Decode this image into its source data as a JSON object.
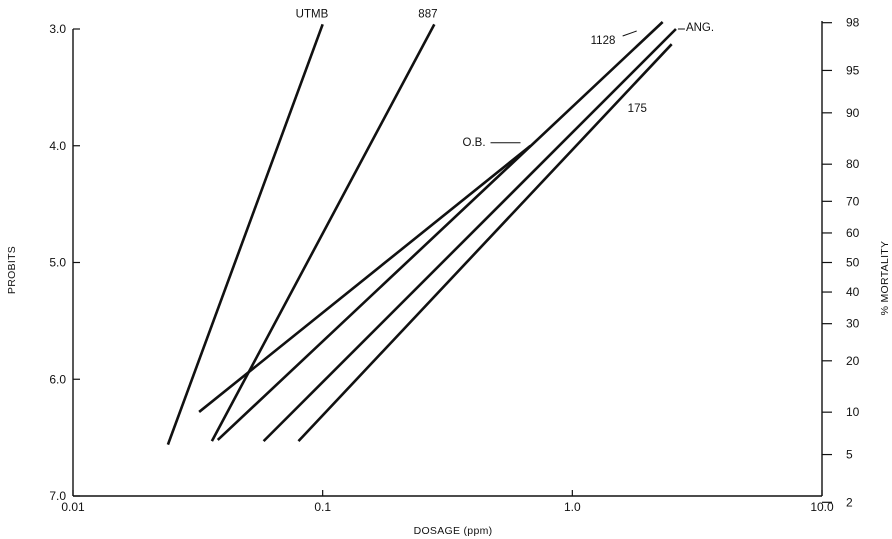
{
  "chart_data": {
    "type": "line",
    "title": "",
    "xlabel": "DOSAGE (ppm)",
    "ylabel": "PROBITS",
    "y2label": "% MORTALITY",
    "xscale": "log",
    "xlim": [
      0.01,
      10.0
    ],
    "ylim": [
      3.0,
      7.0
    ],
    "y_inverted": true,
    "grid": false,
    "legend": "none",
    "x_ticks": [
      0.01,
      0.1,
      1.0,
      10.0
    ],
    "x_tick_labels": [
      "0.01",
      "0.1",
      "1.0",
      "10.0"
    ],
    "y_ticks": [
      3.0,
      4.0,
      5.0,
      6.0,
      7.0
    ],
    "y_tick_labels": [
      "3.0",
      "4.0",
      "5.0",
      "6.0",
      "7.0"
    ],
    "y2_ticks": [
      {
        "probit": 2.946,
        "label": "98"
      },
      {
        "probit": 3.355,
        "label": "95"
      },
      {
        "probit": 3.718,
        "label": "90"
      },
      {
        "probit": 4.158,
        "label": "80"
      },
      {
        "probit": 4.476,
        "label": "70"
      },
      {
        "probit": 4.747,
        "label": "60"
      },
      {
        "probit": 5.0,
        "label": "50"
      },
      {
        "probit": 5.253,
        "label": "40"
      },
      {
        "probit": 5.524,
        "label": "30"
      },
      {
        "probit": 5.842,
        "label": "20"
      },
      {
        "probit": 6.282,
        "label": "10"
      },
      {
        "probit": 6.645,
        "label": "5"
      },
      {
        "probit": 7.054,
        "label": "2"
      }
    ],
    "series": [
      {
        "name": "UTMB",
        "points": [
          {
            "x": 0.024,
            "y": 6.56
          },
          {
            "x": 0.1,
            "y": 2.96
          }
        ]
      },
      {
        "name": "887",
        "points": [
          {
            "x": 0.036,
            "y": 6.53
          },
          {
            "x": 0.28,
            "y": 2.96
          }
        ]
      },
      {
        "name": "O.B.",
        "points": [
          {
            "x": 0.032,
            "y": 6.28
          },
          {
            "x": 0.68,
            "y": 4.0
          }
        ]
      },
      {
        "name": "1128",
        "points": [
          {
            "x": 0.038,
            "y": 6.52
          },
          {
            "x": 2.3,
            "y": 2.94
          }
        ]
      },
      {
        "name": "ANG.",
        "points": [
          {
            "x": 0.058,
            "y": 6.53
          },
          {
            "x": 2.6,
            "y": 3.0
          }
        ]
      },
      {
        "name": "175",
        "points": [
          {
            "x": 0.08,
            "y": 6.53
          },
          {
            "x": 2.5,
            "y": 3.13
          }
        ]
      }
    ],
    "series_labels": [
      "UTMB",
      "887",
      "1128",
      "ANG.",
      "O.B.",
      "175"
    ]
  }
}
